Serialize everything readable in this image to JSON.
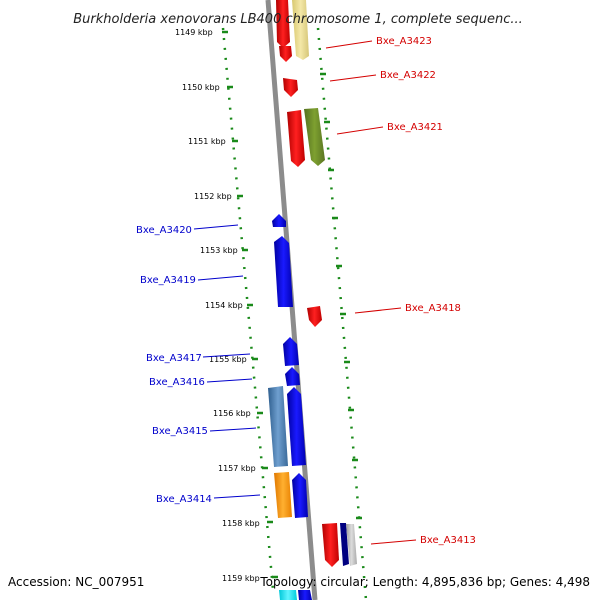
{
  "title": "Burkholderia xenovorans LB400 chromosome 1, complete sequenc...",
  "accession": "Accession: NC_007951",
  "summary": "Topology: circular; Length: 4,895,836 bp; Genes: 4,498",
  "ticks": [
    {
      "label": "1149 kbp"
    },
    {
      "label": "1150 kbp"
    },
    {
      "label": "1151 kbp"
    },
    {
      "label": "1152 kbp"
    },
    {
      "label": "1153 kbp"
    },
    {
      "label": "1154 kbp"
    },
    {
      "label": "1155 kbp"
    },
    {
      "label": "1156 kbp"
    },
    {
      "label": "1157 kbp"
    },
    {
      "label": "1158 kbp"
    },
    {
      "label": "1159 kbp"
    }
  ],
  "genes_forward": [
    {
      "label": "Bxe_A3423",
      "color": "#d40000"
    },
    {
      "label": "Bxe_A3422",
      "color": "#d40000"
    },
    {
      "label": "Bxe_A3421",
      "color": "#d40000"
    },
    {
      "label": "Bxe_A3418",
      "color": "#d40000"
    },
    {
      "label": "Bxe_A3413",
      "color": "#d40000"
    }
  ],
  "genes_reverse": [
    {
      "label": "Bxe_A3420",
      "color": "#0000cc"
    },
    {
      "label": "Bxe_A3419",
      "color": "#0000cc"
    },
    {
      "label": "Bxe_A3417",
      "color": "#0000cc"
    },
    {
      "label": "Bxe_A3416",
      "color": "#0000cc"
    },
    {
      "label": "Bxe_A3415",
      "color": "#0000cc"
    },
    {
      "label": "Bxe_A3414",
      "color": "#0000cc"
    }
  ],
  "colors": {
    "backbone": "#8c8c8c",
    "dots": "#1a8a1a",
    "forward_gene": "#ee0000",
    "reverse_gene": "#0000ee",
    "yellow": "#e8d890",
    "olive": "#6b8e23",
    "steelblue": "#4a7aaa",
    "orange": "#ff9900",
    "navy": "#000080",
    "cyan": "#00e5ee"
  }
}
